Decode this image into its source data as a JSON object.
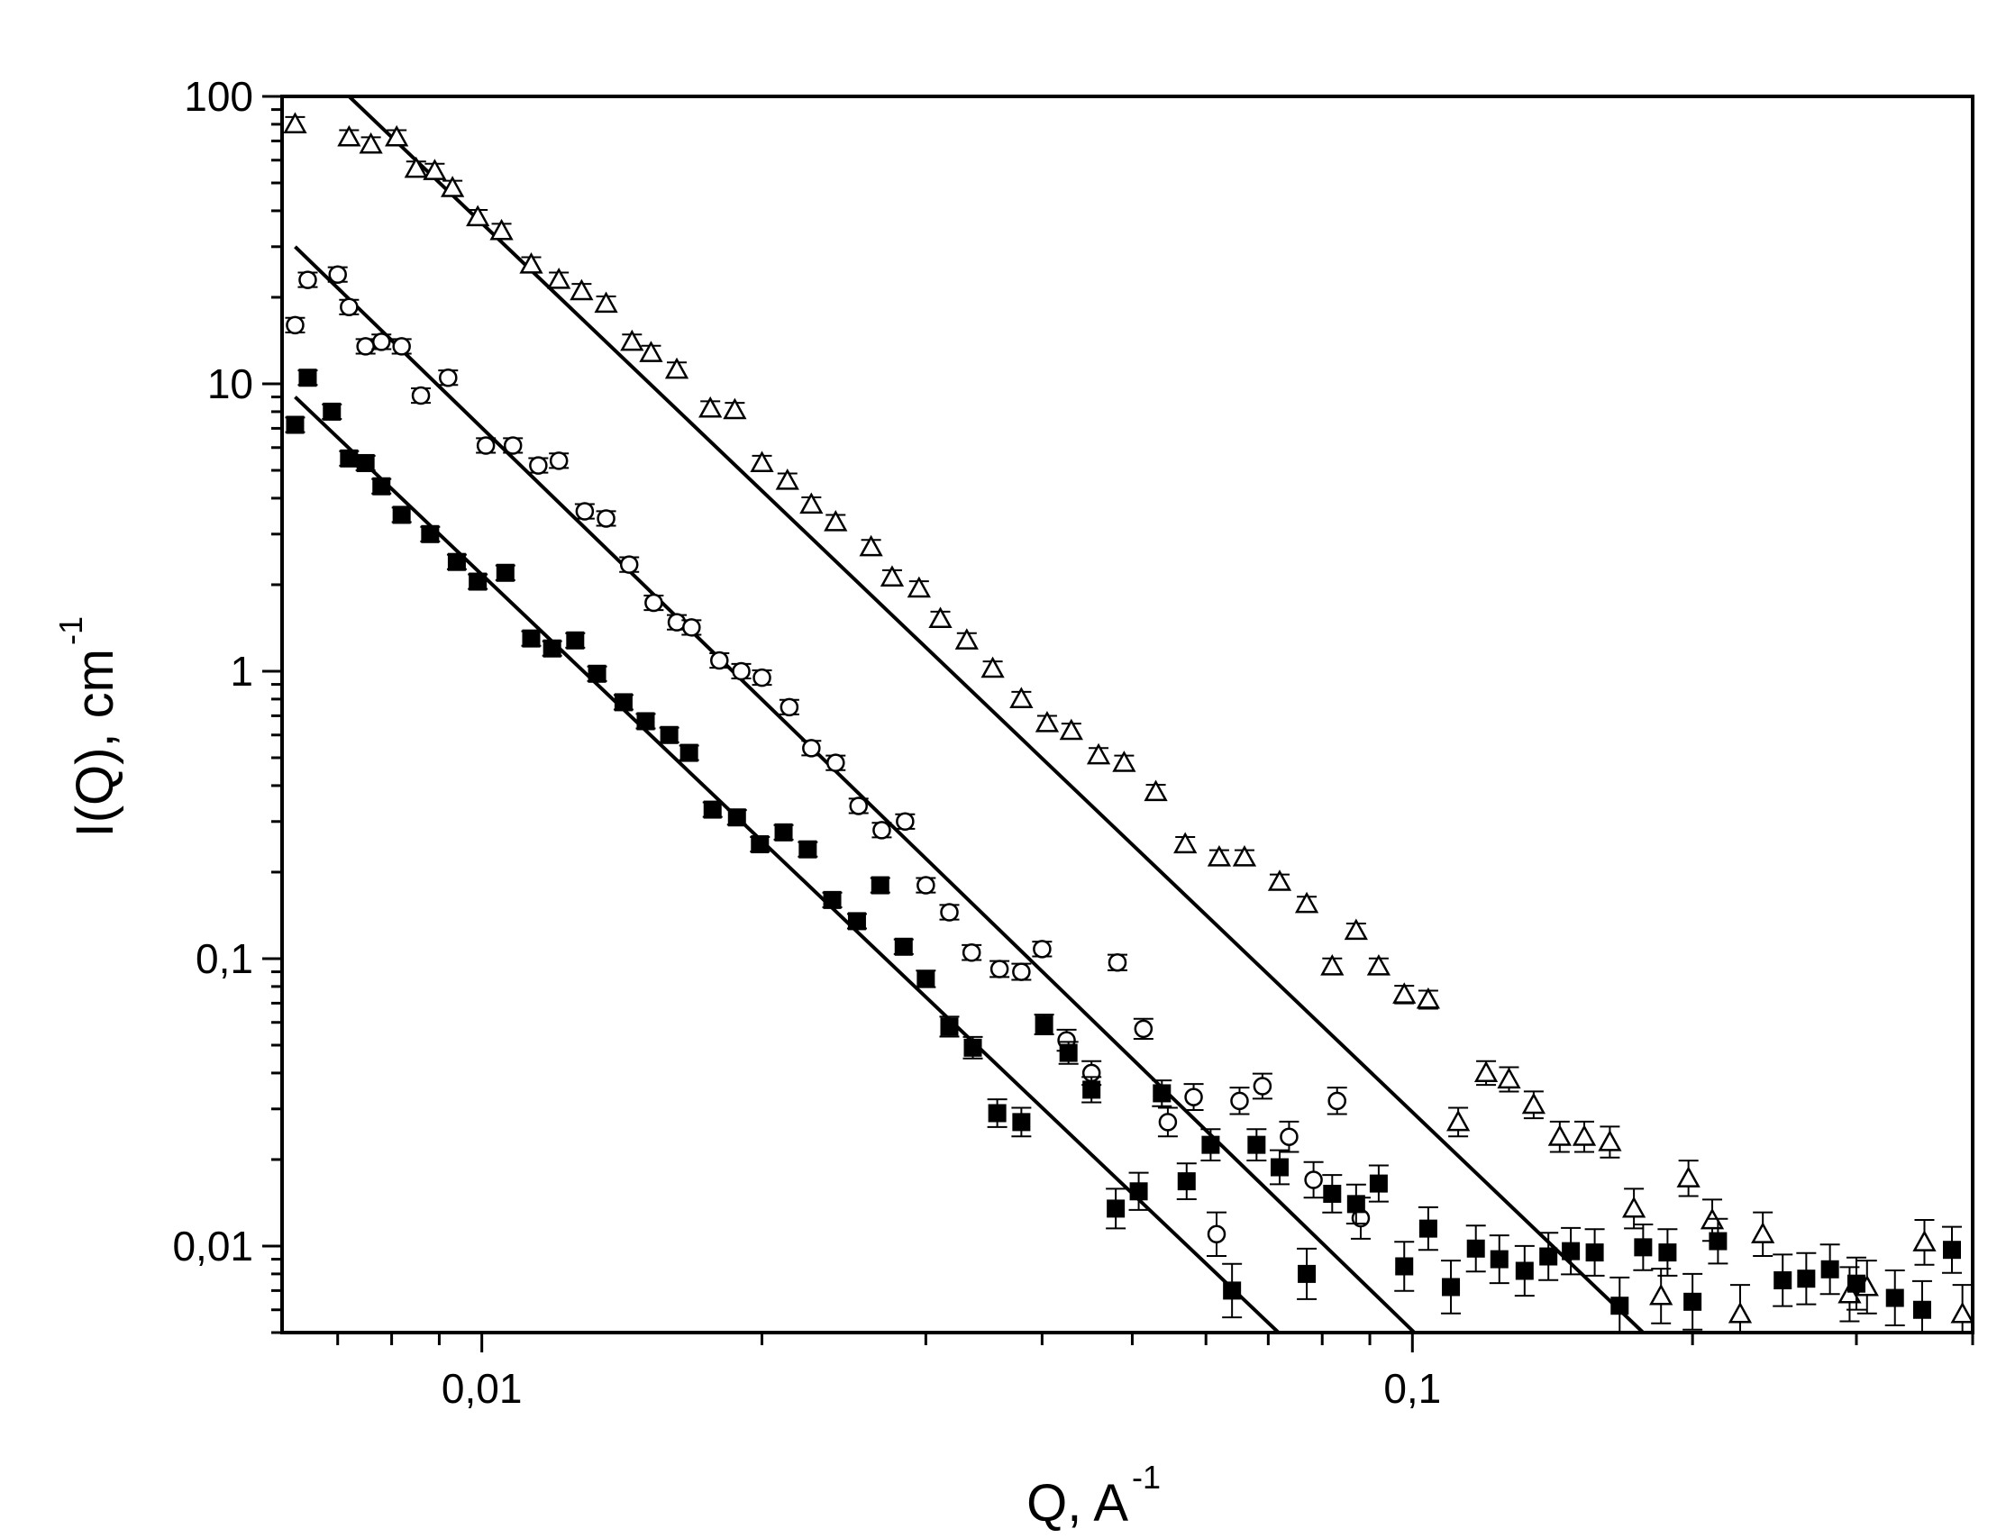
{
  "chart_data": {
    "type": "scatter",
    "title": "",
    "xlabel": "Q, A",
    "xlabel_sup": "-1",
    "ylabel": "I(Q), cm",
    "ylabel_sup": "-1",
    "xscale": "log",
    "yscale": "log",
    "xlim": [
      0.0061,
      0.4
    ],
    "ylim": [
      0.005,
      100
    ],
    "x_tick_labels": [
      {
        "value": 0.01,
        "label": "0,01"
      },
      {
        "value": 0.1,
        "label": "0,1"
      }
    ],
    "y_tick_labels": [
      {
        "value": 100,
        "label": "100"
      },
      {
        "value": 10,
        "label": "10"
      },
      {
        "value": 1,
        "label": "1"
      },
      {
        "value": 0.1,
        "label": "0,1"
      },
      {
        "value": 0.01,
        "label": "0,01"
      }
    ],
    "grid": false,
    "legend": "none",
    "series": [
      {
        "marker": "open-triangle",
        "points": [
          [
            0.0063,
            80
          ],
          [
            0.0072,
            72
          ],
          [
            0.0076,
            68
          ],
          [
            0.0081,
            72
          ],
          [
            0.0085,
            56
          ],
          [
            0.0089,
            55
          ],
          [
            0.0093,
            48
          ],
          [
            0.0099,
            38
          ],
          [
            0.0105,
            34
          ],
          [
            0.0113,
            26
          ],
          [
            0.0121,
            23
          ],
          [
            0.0128,
            21
          ],
          [
            0.0136,
            19
          ],
          [
            0.0145,
            14
          ],
          [
            0.0152,
            12.8
          ],
          [
            0.0162,
            11.2
          ],
          [
            0.0176,
            8.2
          ],
          [
            0.0187,
            8.1
          ],
          [
            0.02,
            5.3
          ],
          [
            0.0213,
            4.6
          ],
          [
            0.0226,
            3.8
          ],
          [
            0.024,
            3.3
          ],
          [
            0.0262,
            2.7
          ],
          [
            0.0276,
            2.12
          ],
          [
            0.0295,
            1.94
          ],
          [
            0.0311,
            1.52
          ],
          [
            0.0332,
            1.28
          ],
          [
            0.0354,
            1.02
          ],
          [
            0.038,
            0.8
          ],
          [
            0.0405,
            0.66
          ],
          [
            0.043,
            0.62
          ],
          [
            0.046,
            0.51
          ],
          [
            0.049,
            0.48
          ],
          [
            0.053,
            0.38
          ],
          [
            0.057,
            0.25
          ],
          [
            0.062,
            0.225
          ],
          [
            0.066,
            0.225
          ],
          [
            0.072,
            0.185
          ],
          [
            0.077,
            0.155
          ],
          [
            0.082,
            0.094
          ],
          [
            0.087,
            0.125
          ],
          [
            0.092,
            0.094
          ],
          [
            0.098,
            0.075
          ],
          [
            0.104,
            0.072
          ],
          [
            0.112,
            0.027
          ],
          [
            0.12,
            0.04
          ],
          [
            0.127,
            0.038
          ],
          [
            0.135,
            0.031
          ],
          [
            0.144,
            0.024
          ],
          [
            0.153,
            0.024
          ],
          [
            0.163,
            0.023
          ],
          [
            0.173,
            0.0135
          ],
          [
            0.185,
            0.0067
          ],
          [
            0.198,
            0.0172
          ],
          [
            0.21,
            0.0123
          ],
          [
            0.225,
            0.0058
          ],
          [
            0.238,
            0.011
          ],
          [
            0.295,
            0.0068
          ],
          [
            0.308,
            0.0072
          ],
          [
            0.355,
            0.0103
          ],
          [
            0.39,
            0.0058
          ]
        ]
      },
      {
        "marker": "open-circle",
        "points": [
          [
            0.0063,
            16
          ],
          [
            0.0065,
            23
          ],
          [
            0.007,
            24
          ],
          [
            0.0072,
            18.5
          ],
          [
            0.0075,
            13.5
          ],
          [
            0.0078,
            14
          ],
          [
            0.0082,
            13.5
          ],
          [
            0.0086,
            9.1
          ],
          [
            0.0092,
            10.5
          ],
          [
            0.0101,
            6.1
          ],
          [
            0.0108,
            6.1
          ],
          [
            0.0115,
            5.2
          ],
          [
            0.0121,
            5.4
          ],
          [
            0.0129,
            3.6
          ],
          [
            0.0136,
            3.4
          ],
          [
            0.0144,
            2.35
          ],
          [
            0.0153,
            1.73
          ],
          [
            0.0162,
            1.48
          ],
          [
            0.0168,
            1.42
          ],
          [
            0.018,
            1.09
          ],
          [
            0.019,
            1.0
          ],
          [
            0.02,
            0.95
          ],
          [
            0.0214,
            0.75
          ],
          [
            0.0226,
            0.54
          ],
          [
            0.024,
            0.48
          ],
          [
            0.0254,
            0.34
          ],
          [
            0.0269,
            0.28
          ],
          [
            0.0285,
            0.3
          ],
          [
            0.03,
            0.18
          ],
          [
            0.0318,
            0.145
          ],
          [
            0.0336,
            0.105
          ],
          [
            0.036,
            0.092
          ],
          [
            0.038,
            0.09
          ],
          [
            0.04,
            0.108
          ],
          [
            0.0425,
            0.052
          ],
          [
            0.0452,
            0.04
          ],
          [
            0.0482,
            0.097
          ],
          [
            0.0514,
            0.057
          ],
          [
            0.0546,
            0.027
          ],
          [
            0.0582,
            0.033
          ],
          [
            0.0616,
            0.011
          ],
          [
            0.0652,
            0.032
          ],
          [
            0.069,
            0.036
          ],
          [
            0.0737,
            0.024
          ],
          [
            0.0783,
            0.017
          ],
          [
            0.083,
            0.032
          ],
          [
            0.088,
            0.0125
          ]
        ]
      },
      {
        "marker": "filled-square",
        "points": [
          [
            0.0063,
            7.2
          ],
          [
            0.0065,
            10.5
          ],
          [
            0.0069,
            8.0
          ],
          [
            0.0072,
            5.5
          ],
          [
            0.0075,
            5.3
          ],
          [
            0.0078,
            4.4
          ],
          [
            0.0082,
            3.5
          ],
          [
            0.0088,
            3.0
          ],
          [
            0.0094,
            2.4
          ],
          [
            0.0099,
            2.05
          ],
          [
            0.0106,
            2.2
          ],
          [
            0.0113,
            1.3
          ],
          [
            0.0119,
            1.2
          ],
          [
            0.0126,
            1.28
          ],
          [
            0.0133,
            0.98
          ],
          [
            0.0142,
            0.78
          ],
          [
            0.015,
            0.67
          ],
          [
            0.0159,
            0.6
          ],
          [
            0.0167,
            0.52
          ],
          [
            0.0177,
            0.33
          ],
          [
            0.0188,
            0.31
          ],
          [
            0.0199,
            0.25
          ],
          [
            0.0211,
            0.275
          ],
          [
            0.0224,
            0.24
          ],
          [
            0.0238,
            0.16
          ],
          [
            0.0253,
            0.135
          ],
          [
            0.0268,
            0.18
          ],
          [
            0.0284,
            0.11
          ],
          [
            0.03,
            0.085
          ],
          [
            0.0318,
            0.058
          ],
          [
            0.0337,
            0.049
          ],
          [
            0.0358,
            0.029
          ],
          [
            0.038,
            0.027
          ],
          [
            0.0402,
            0.059
          ],
          [
            0.0427,
            0.047
          ],
          [
            0.0452,
            0.035
          ],
          [
            0.048,
            0.0135
          ],
          [
            0.0508,
            0.0155
          ],
          [
            0.0538,
            0.034
          ],
          [
            0.0572,
            0.0168
          ],
          [
            0.0607,
            0.0225
          ],
          [
            0.064,
            0.007
          ],
          [
            0.068,
            0.0225
          ],
          [
            0.072,
            0.0188
          ],
          [
            0.077,
            0.008
          ],
          [
            0.082,
            0.0152
          ],
          [
            0.087,
            0.014
          ],
          [
            0.092,
            0.0165
          ],
          [
            0.098,
            0.0085
          ],
          [
            0.104,
            0.0115
          ],
          [
            0.11,
            0.0072
          ],
          [
            0.117,
            0.0098
          ],
          [
            0.124,
            0.009
          ],
          [
            0.132,
            0.0082
          ],
          [
            0.14,
            0.0092
          ],
          [
            0.148,
            0.0096
          ],
          [
            0.157,
            0.0095
          ],
          [
            0.167,
            0.0062
          ],
          [
            0.177,
            0.0099
          ],
          [
            0.188,
            0.0095
          ],
          [
            0.2,
            0.0064
          ],
          [
            0.213,
            0.0104
          ],
          [
            0.25,
            0.0076
          ],
          [
            0.265,
            0.0077
          ],
          [
            0.281,
            0.0083
          ],
          [
            0.3,
            0.0074
          ],
          [
            0.33,
            0.0066
          ],
          [
            0.353,
            0.006
          ],
          [
            0.38,
            0.0097
          ]
        ]
      }
    ],
    "fit_lines": [
      {
        "points": [
          [
            0.0072,
            100
          ],
          [
            0.177,
            0.005
          ]
        ]
      },
      {
        "points": [
          [
            0.0063,
            30
          ],
          [
            0.1005,
            0.005
          ]
        ]
      },
      {
        "points": [
          [
            0.0063,
            9.0
          ],
          [
            0.0718,
            0.005
          ]
        ]
      }
    ]
  }
}
